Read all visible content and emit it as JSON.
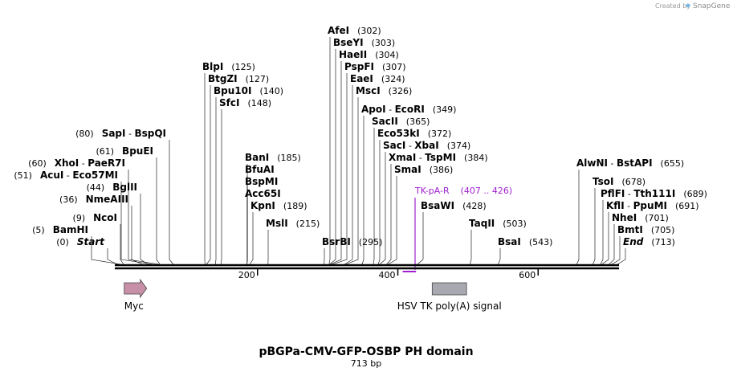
{
  "credit": {
    "text": "Created by",
    "brand": "SnapGene"
  },
  "title": "pBGPa-CMV-GFP-OSBP PH domain",
  "subtitle": "713 bp",
  "length": 713,
  "scale_ticks": [
    {
      "pos": 200,
      "label": "200"
    },
    {
      "pos": 400,
      "label": "400"
    },
    {
      "pos": 600,
      "label": "600"
    }
  ],
  "site_groups": [
    {
      "label_side": "left",
      "parts": [
        {
          "t": "(0)",
          "c": "pos"
        },
        {
          "t": "Start",
          "c": "enz",
          "i": true
        }
      ],
      "sites": [
        0
      ]
    },
    {
      "label_side": "left",
      "parts": [
        {
          "t": "(5)",
          "c": "pos"
        },
        {
          "t": "BamHI",
          "c": "enz"
        }
      ],
      "sites": [
        5
      ]
    },
    {
      "label_side": "left",
      "parts": [
        {
          "t": "(9)",
          "c": "pos"
        },
        {
          "t": "NcoI",
          "c": "enz"
        }
      ],
      "sites": [
        9
      ]
    },
    {
      "label_side": "left",
      "parts": [
        {
          "t": "(36)",
          "c": "pos"
        },
        {
          "t": "NmeAIII",
          "c": "enz"
        }
      ],
      "sites": [
        36
      ]
    },
    {
      "label_side": "left",
      "parts": [
        {
          "t": "(44)",
          "c": "pos"
        },
        {
          "t": "BglII",
          "c": "enz"
        }
      ],
      "sites": [
        44
      ]
    },
    {
      "label_side": "left",
      "parts": [
        {
          "t": "(51)",
          "c": "pos"
        },
        {
          "t": "AcuI",
          "c": "enz"
        },
        {
          "t": " - ",
          "c": "pos"
        },
        {
          "t": "Eco57MI",
          "c": "enz"
        }
      ],
      "sites": [
        51
      ]
    },
    {
      "label_side": "left",
      "parts": [
        {
          "t": "(60)",
          "c": "pos"
        },
        {
          "t": "XhoI",
          "c": "enz"
        },
        {
          "t": " - ",
          "c": "pos"
        },
        {
          "t": "PaeR7I",
          "c": "enz"
        }
      ],
      "sites": [
        60
      ]
    },
    {
      "label_side": "left",
      "parts": [
        {
          "t": "(61)",
          "c": "pos"
        },
        {
          "t": "BpuEI",
          "c": "enz"
        }
      ],
      "sites": [
        61
      ]
    },
    {
      "label_side": "left",
      "parts": [
        {
          "t": "(80)",
          "c": "pos"
        },
        {
          "t": "SapI",
          "c": "enz"
        },
        {
          "t": " - ",
          "c": "pos"
        },
        {
          "t": "BspQI",
          "c": "enz"
        }
      ],
      "sites": [
        80
      ]
    },
    {
      "label_side": "right",
      "parts": [
        {
          "t": "BlpI",
          "c": "enz"
        },
        {
          "t": "(125)",
          "c": "pos"
        }
      ],
      "sites": [
        125
      ]
    },
    {
      "label_side": "right",
      "parts": [
        {
          "t": "BtgZI",
          "c": "enz"
        },
        {
          "t": "(127)",
          "c": "pos"
        }
      ],
      "sites": [
        127
      ]
    },
    {
      "label_side": "right",
      "parts": [
        {
          "t": "Bpu10I",
          "c": "enz"
        },
        {
          "t": "(140)",
          "c": "pos"
        }
      ],
      "sites": [
        140
      ]
    },
    {
      "label_side": "right",
      "parts": [
        {
          "t": "SfcI",
          "c": "enz"
        },
        {
          "t": "(148)",
          "c": "pos"
        }
      ],
      "sites": [
        148
      ]
    },
    {
      "label_side": "right",
      "parts": [
        {
          "t": "BanI",
          "c": "enz"
        },
        {
          "t": "(185)",
          "c": "pos"
        }
      ],
      "sites": [
        185
      ]
    },
    {
      "label_side": "right",
      "parts": [
        {
          "t": "BfuAI",
          "c": "enz"
        }
      ],
      "sites": [
        185
      ]
    },
    {
      "label_side": "right",
      "parts": [
        {
          "t": "BspMI",
          "c": "enz"
        }
      ],
      "sites": [
        185
      ]
    },
    {
      "label_side": "right",
      "parts": [
        {
          "t": "Acc65I",
          "c": "enz"
        }
      ],
      "sites": [
        185
      ]
    },
    {
      "label_side": "right",
      "parts": [
        {
          "t": "KpnI",
          "c": "enz"
        },
        {
          "t": "(189)",
          "c": "pos"
        }
      ],
      "sites": [
        189
      ]
    },
    {
      "label_side": "right",
      "parts": [
        {
          "t": "MslI",
          "c": "enz"
        },
        {
          "t": "(215)",
          "c": "pos"
        }
      ],
      "sites": [
        215
      ]
    },
    {
      "label_side": "right",
      "parts": [
        {
          "t": "AfeI",
          "c": "enz"
        },
        {
          "t": "(302)",
          "c": "pos"
        }
      ],
      "sites": [
        302
      ]
    },
    {
      "label_side": "right",
      "parts": [
        {
          "t": "BseYI",
          "c": "enz"
        },
        {
          "t": "(303)",
          "c": "pos"
        }
      ],
      "sites": [
        303
      ]
    },
    {
      "label_side": "right",
      "parts": [
        {
          "t": "HaeII",
          "c": "enz"
        },
        {
          "t": "(304)",
          "c": "pos"
        }
      ],
      "sites": [
        304
      ]
    },
    {
      "label_side": "right",
      "parts": [
        {
          "t": "PspFI",
          "c": "enz"
        },
        {
          "t": "(307)",
          "c": "pos"
        }
      ],
      "sites": [
        307
      ]
    },
    {
      "label_side": "right",
      "parts": [
        {
          "t": "EaeI",
          "c": "enz"
        },
        {
          "t": "(324)",
          "c": "pos"
        }
      ],
      "sites": [
        324
      ]
    },
    {
      "label_side": "right",
      "parts": [
        {
          "t": "MscI",
          "c": "enz"
        },
        {
          "t": "(326)",
          "c": "pos"
        }
      ],
      "sites": [
        326
      ]
    },
    {
      "label_side": "right",
      "parts": [
        {
          "t": "ApoI",
          "c": "enz"
        },
        {
          "t": " - ",
          "c": "pos"
        },
        {
          "t": "EcoRI",
          "c": "enz"
        },
        {
          "t": "(349)",
          "c": "pos"
        }
      ],
      "sites": [
        349
      ]
    },
    {
      "label_side": "right",
      "parts": [
        {
          "t": "SacII",
          "c": "enz"
        },
        {
          "t": "(365)",
          "c": "pos"
        }
      ],
      "sites": [
        365
      ]
    },
    {
      "label_side": "right",
      "parts": [
        {
          "t": "Eco53kI",
          "c": "enz"
        },
        {
          "t": "(372)",
          "c": "pos"
        }
      ],
      "sites": [
        372
      ]
    },
    {
      "label_side": "right",
      "parts": [
        {
          "t": "SacI",
          "c": "enz"
        },
        {
          "t": " - ",
          "c": "pos"
        },
        {
          "t": "XbaI",
          "c": "enz"
        },
        {
          "t": "(374)",
          "c": "pos"
        }
      ],
      "sites": [
        374
      ]
    },
    {
      "label_side": "right",
      "parts": [
        {
          "t": "XmaI",
          "c": "enz"
        },
        {
          "t": " - ",
          "c": "pos"
        },
        {
          "t": "TspMI",
          "c": "enz"
        },
        {
          "t": "(384)",
          "c": "pos"
        }
      ],
      "sites": [
        384
      ]
    },
    {
      "label_side": "right",
      "parts": [
        {
          "t": "SmaI",
          "c": "enz"
        },
        {
          "t": "(386)",
          "c": "pos"
        }
      ],
      "sites": [
        386
      ]
    },
    {
      "label_side": "right",
      "parts": [
        {
          "t": "BsrBI",
          "c": "enz"
        },
        {
          "t": "(295)",
          "c": "pos"
        }
      ],
      "sites": [
        295
      ]
    },
    {
      "label_side": "right",
      "parts": [
        {
          "t": "BsaWI",
          "c": "enz"
        },
        {
          "t": "(428)",
          "c": "pos"
        }
      ],
      "sites": [
        428
      ]
    },
    {
      "label_side": "right",
      "parts": [
        {
          "t": "TaqII",
          "c": "enz"
        },
        {
          "t": "(503)",
          "c": "pos"
        }
      ],
      "sites": [
        503
      ]
    },
    {
      "label_side": "right",
      "parts": [
        {
          "t": "BsaI",
          "c": "enz"
        },
        {
          "t": "(543)",
          "c": "pos"
        }
      ],
      "sites": [
        543
      ]
    },
    {
      "label_side": "right",
      "parts": [
        {
          "t": "AlwNI",
          "c": "enz"
        },
        {
          "t": " - ",
          "c": "pos"
        },
        {
          "t": "BstAPI",
          "c": "enz"
        },
        {
          "t": "(655)",
          "c": "pos"
        }
      ],
      "sites": [
        655
      ]
    },
    {
      "label_side": "right",
      "parts": [
        {
          "t": "TsoI",
          "c": "enz"
        },
        {
          "t": "(678)",
          "c": "pos"
        }
      ],
      "sites": [
        678
      ]
    },
    {
      "label_side": "right",
      "parts": [
        {
          "t": "PflFI",
          "c": "enz"
        },
        {
          "t": " - ",
          "c": "pos"
        },
        {
          "t": "Tth111I",
          "c": "enz"
        },
        {
          "t": "(689)",
          "c": "pos"
        }
      ],
      "sites": [
        689
      ]
    },
    {
      "label_side": "right",
      "parts": [
        {
          "t": "KflI",
          "c": "enz"
        },
        {
          "t": " - ",
          "c": "pos"
        },
        {
          "t": "PpuMI",
          "c": "enz"
        },
        {
          "t": "(691)",
          "c": "pos"
        }
      ],
      "sites": [
        691
      ]
    },
    {
      "label_side": "right",
      "parts": [
        {
          "t": "NheI",
          "c": "enz"
        },
        {
          "t": "(701)",
          "c": "pos"
        }
      ],
      "sites": [
        701
      ]
    },
    {
      "label_side": "right",
      "parts": [
        {
          "t": "BmtI",
          "c": "enz"
        },
        {
          "t": "(705)",
          "c": "pos"
        }
      ],
      "sites": [
        705
      ]
    },
    {
      "label_side": "right",
      "parts": [
        {
          "t": "End",
          "c": "enz",
          "i": true
        },
        {
          "t": "(713)",
          "c": "pos"
        }
      ],
      "sites": [
        713
      ]
    }
  ],
  "primer": {
    "name": "TK-pA-R",
    "range": "(407 .. 426)",
    "start": 407,
    "end": 426,
    "color": "#a020d0"
  },
  "features": [
    {
      "name": "Myc",
      "type": "arrow",
      "start": 10,
      "end": 42,
      "color": "#c890a8"
    },
    {
      "name": "HSV TK poly(A) signal",
      "type": "box",
      "start": 449,
      "end": 498,
      "color": "#a8a8b0"
    }
  ]
}
